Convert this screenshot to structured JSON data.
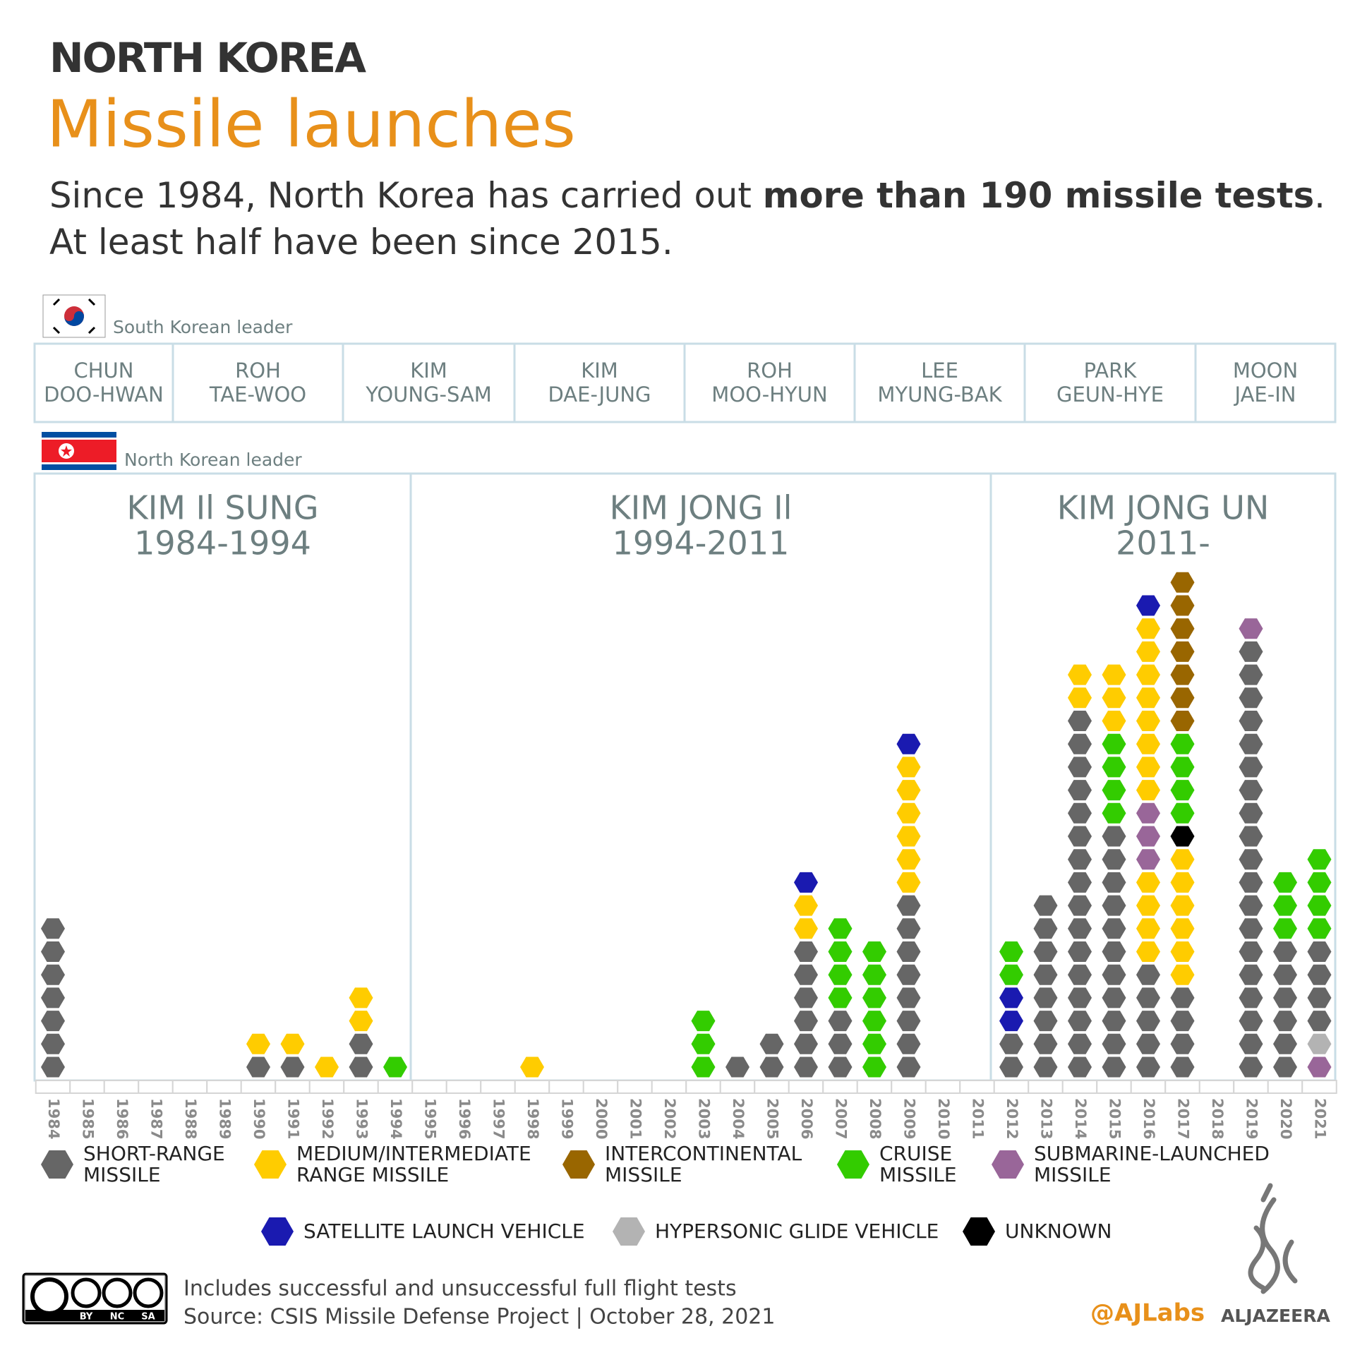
{
  "header": {
    "kicker": "NORTH KOREA",
    "title": "Missile launches",
    "subtitle": [
      [
        {
          "text": "Since 1984, North Korea has carried out ",
          "bold": false
        },
        {
          "text": "more than 190 missile tests",
          "bold": true
        },
        {
          "text": ".",
          "bold": false
        }
      ],
      [
        {
          "text": "At least half have been since 2015.",
          "bold": false
        }
      ]
    ]
  },
  "south_leaders": {
    "label": "South Korean leader",
    "names": [
      [
        "CHUN",
        "DOO-HWAN"
      ],
      [
        "ROH",
        "TAE-WOO"
      ],
      [
        "KIM",
        "YOUNG-SAM"
      ],
      [
        "KIM",
        "DAE-JUNG"
      ],
      [
        "ROH",
        "MOO-HYUN"
      ],
      [
        "LEE",
        "MYUNG-BAK"
      ],
      [
        "PARK",
        "GEUN-HYE"
      ],
      [
        "MOON",
        "JAE-IN"
      ]
    ]
  },
  "north_leaders": {
    "label": "North Korean leader",
    "names": [
      [
        "KIM Il SUNG",
        "1984-1994"
      ],
      [
        "KIM JONG Il",
        "1994-2011"
      ],
      [
        "KIM JONG UN",
        "2011-"
      ]
    ]
  },
  "chart_data": {
    "type": "stacked-hexagon",
    "series": [
      {
        "name": "SHORT-RANGE MISSILE",
        "color": "#666666"
      },
      {
        "name": "MEDIUM/INTERMEDIATE RANGE MISSILE",
        "color": "#ffcc00"
      },
      {
        "name": "INTERCONTINENTAL MISSILE",
        "color": "#996600"
      },
      {
        "name": "CRUISE MISSILE",
        "color": "#33cc00"
      },
      {
        "name": "SUBMARINE-LAUNCHED MISSILE",
        "color": "#996699"
      },
      {
        "name": "SATELLITE LAUNCH VEHICLE",
        "color": "#1a1ab0"
      },
      {
        "name": "HYPERSONIC GLIDE VEHICLE",
        "color": "#b3b3b3"
      },
      {
        "name": "UNKNOWN",
        "color": "#000000"
      }
    ],
    "x": [
      1984,
      1985,
      1986,
      1987,
      1988,
      1989,
      1990,
      1991,
      1992,
      1993,
      1994,
      1995,
      1996,
      1997,
      1998,
      1999,
      2000,
      2001,
      2002,
      2003,
      2004,
      2005,
      2006,
      2007,
      2008,
      2009,
      2010,
      2011,
      2012,
      2013,
      2014,
      2015,
      2016,
      2017,
      2018,
      2019,
      2020,
      2021
    ],
    "stacks": [
      [
        {
          "type": "SHORT-RANGE MISSILE",
          "count": 7
        }
      ],
      [],
      [],
      [],
      [],
      [],
      [
        {
          "type": "SHORT-RANGE MISSILE",
          "count": 1
        },
        {
          "type": "MEDIUM/INTERMEDIATE RANGE MISSILE",
          "count": 1
        }
      ],
      [
        {
          "type": "SHORT-RANGE MISSILE",
          "count": 1
        },
        {
          "type": "MEDIUM/INTERMEDIATE RANGE MISSILE",
          "count": 1
        }
      ],
      [
        {
          "type": "MEDIUM/INTERMEDIATE RANGE MISSILE",
          "count": 1
        }
      ],
      [
        {
          "type": "SHORT-RANGE MISSILE",
          "count": 2
        },
        {
          "type": "MEDIUM/INTERMEDIATE RANGE MISSILE",
          "count": 2
        }
      ],
      [
        {
          "type": "CRUISE MISSILE",
          "count": 1
        }
      ],
      [],
      [],
      [],
      [
        {
          "type": "MEDIUM/INTERMEDIATE RANGE MISSILE",
          "count": 1
        }
      ],
      [],
      [],
      [],
      [],
      [
        {
          "type": "CRUISE MISSILE",
          "count": 3
        }
      ],
      [
        {
          "type": "SHORT-RANGE MISSILE",
          "count": 1
        }
      ],
      [
        {
          "type": "SHORT-RANGE MISSILE",
          "count": 2
        }
      ],
      [
        {
          "type": "SHORT-RANGE MISSILE",
          "count": 6
        },
        {
          "type": "MEDIUM/INTERMEDIATE RANGE MISSILE",
          "count": 2
        },
        {
          "type": "SATELLITE LAUNCH VEHICLE",
          "count": 1
        }
      ],
      [
        {
          "type": "SHORT-RANGE MISSILE",
          "count": 3
        },
        {
          "type": "CRUISE MISSILE",
          "count": 4
        }
      ],
      [
        {
          "type": "CRUISE MISSILE",
          "count": 6
        }
      ],
      [
        {
          "type": "SHORT-RANGE MISSILE",
          "count": 8
        },
        {
          "type": "MEDIUM/INTERMEDIATE RANGE MISSILE",
          "count": 6
        },
        {
          "type": "SATELLITE LAUNCH VEHICLE",
          "count": 1
        }
      ],
      [],
      [],
      [
        {
          "type": "SHORT-RANGE MISSILE",
          "count": 2
        },
        {
          "type": "SATELLITE LAUNCH VEHICLE",
          "count": 2
        },
        {
          "type": "CRUISE MISSILE",
          "count": 2
        }
      ],
      [
        {
          "type": "SHORT-RANGE MISSILE",
          "count": 8
        }
      ],
      [
        {
          "type": "SHORT-RANGE MISSILE",
          "count": 16
        },
        {
          "type": "MEDIUM/INTERMEDIATE RANGE MISSILE",
          "count": 2
        }
      ],
      [
        {
          "type": "SHORT-RANGE MISSILE",
          "count": 11
        },
        {
          "type": "CRUISE MISSILE",
          "count": 4
        },
        {
          "type": "MEDIUM/INTERMEDIATE RANGE MISSILE",
          "count": 3
        }
      ],
      [
        {
          "type": "SHORT-RANGE MISSILE",
          "count": 5
        },
        {
          "type": "MEDIUM/INTERMEDIATE RANGE MISSILE",
          "count": 4
        },
        {
          "type": "SUBMARINE-LAUNCHED MISSILE",
          "count": 3
        },
        {
          "type": "MEDIUM/INTERMEDIATE RANGE MISSILE",
          "count": 8
        },
        {
          "type": "SATELLITE LAUNCH VEHICLE",
          "count": 1
        }
      ],
      [
        {
          "type": "SHORT-RANGE MISSILE",
          "count": 4
        },
        {
          "type": "MEDIUM/INTERMEDIATE RANGE MISSILE",
          "count": 6
        },
        {
          "type": "UNKNOWN",
          "count": 1
        },
        {
          "type": "CRUISE MISSILE",
          "count": 4
        },
        {
          "type": "INTERCONTINENTAL MISSILE",
          "count": 7
        }
      ],
      [],
      [
        {
          "type": "SHORT-RANGE MISSILE",
          "count": 19
        },
        {
          "type": "SUBMARINE-LAUNCHED MISSILE",
          "count": 1
        }
      ],
      [
        {
          "type": "SHORT-RANGE MISSILE",
          "count": 6
        },
        {
          "type": "CRUISE MISSILE",
          "count": 3
        }
      ],
      [
        {
          "type": "SUBMARINE-LAUNCHED MISSILE",
          "count": 1
        },
        {
          "type": "HYPERSONIC GLIDE VEHICLE",
          "count": 1
        },
        {
          "type": "SHORT-RANGE MISSILE",
          "count": 4
        },
        {
          "type": "CRUISE MISSILE",
          "count": 4
        }
      ]
    ]
  },
  "footer": {
    "note": "Includes successful and unsuccessful full flight tests",
    "source": "Source: CSIS Missile Defense Project | October 28, 2021",
    "license": [
      "BY",
      "NC",
      "SA"
    ],
    "handle": "@AJLabs",
    "brand": "ALJAZEERA"
  }
}
